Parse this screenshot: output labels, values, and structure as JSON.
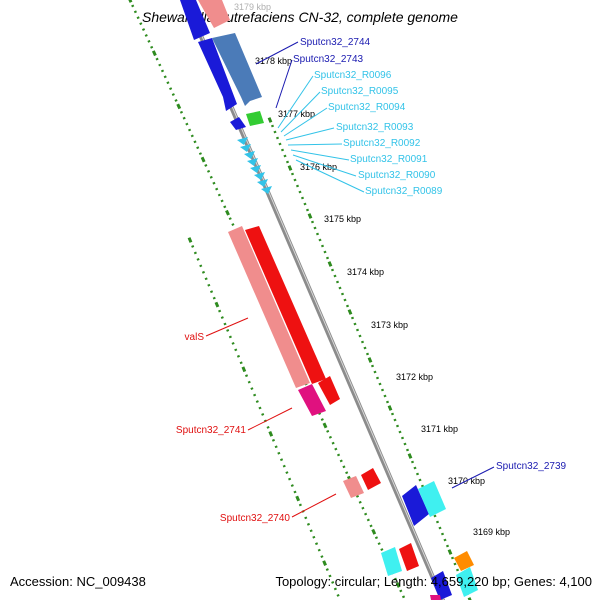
{
  "title": "Shewanella putrefaciens CN-32, complete genome",
  "footer": {
    "accession": "Accession: NC_009438",
    "topology": "Topology: circular; Length: 4,659,220 bp; Genes: 4,100"
  },
  "colors": {
    "backbone": "#8c8c8c",
    "ruler": "#2e8b1f",
    "feature_label_dark_blue": "#1a1ab0",
    "feature_label_light_blue": "#33c3e8",
    "feature_label_red": "#e01010"
  },
  "ruler_labels": [
    "3179 kbp",
    "3178 kbp",
    "3177 kbp",
    "3176 kbp",
    "3175 kbp",
    "3174 kbp",
    "3173 kbp",
    "3172 kbp",
    "3171 kbp",
    "3170 kbp",
    "3169 kbp"
  ],
  "feature_labels": [
    {
      "text": "Sputcn32_2744",
      "group": "dark_blue"
    },
    {
      "text": "Sputcn32_2743",
      "group": "dark_blue"
    },
    {
      "text": "Sputcn32_R0096",
      "group": "light_blue"
    },
    {
      "text": "Sputcn32_R0095",
      "group": "light_blue"
    },
    {
      "text": "Sputcn32_R0094",
      "group": "light_blue"
    },
    {
      "text": "Sputcn32_R0093",
      "group": "light_blue"
    },
    {
      "text": "Sputcn32_R0092",
      "group": "light_blue"
    },
    {
      "text": "Sputcn32_R0091",
      "group": "light_blue"
    },
    {
      "text": "Sputcn32_R0090",
      "group": "light_blue"
    },
    {
      "text": "Sputcn32_R0089",
      "group": "light_blue"
    },
    {
      "text": "valS",
      "group": "red"
    },
    {
      "text": "Sputcn32_2741",
      "group": "red"
    },
    {
      "text": "Sputcn32_2740",
      "group": "red"
    },
    {
      "text": "Sputcn32_2739",
      "group": "dark_blue"
    }
  ]
}
